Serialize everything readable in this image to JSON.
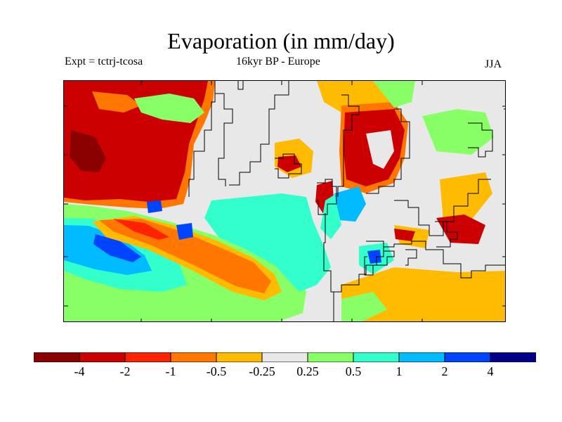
{
  "title": "Evaporation (in mm/day)",
  "subtitle_left": "Expt = tctrj-tcosa",
  "subtitle_center": "16kyr BP - Europe",
  "subtitle_right": "JJA",
  "colorbar": {
    "colors": [
      "#8b0000",
      "#cc0000",
      "#ff2200",
      "#ff7700",
      "#ffbb00",
      "#e8e8e8",
      "#88ff66",
      "#33ffcc",
      "#00bbff",
      "#0044ff",
      "#000088"
    ],
    "labels": [
      "-4",
      "-2",
      "-1",
      "-0.5",
      "-0.25",
      "0.25",
      "0.5",
      "1",
      "2",
      "4"
    ]
  },
  "palette": {
    "land_neutral": "#e8e8e8",
    "coast_line": "#000000"
  }
}
